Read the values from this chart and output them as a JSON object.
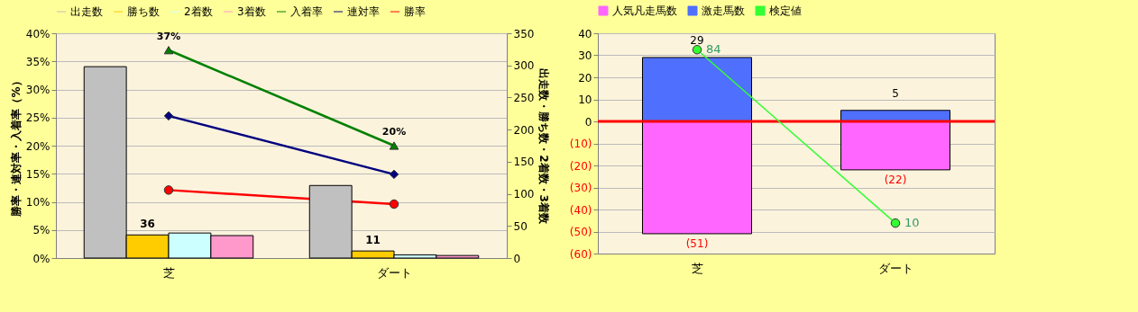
{
  "chart_data": [
    {
      "type": "bar",
      "categories": [
        "芝",
        "ダート"
      ],
      "ylabel": "勝率・連対率・入着率（%）",
      "y2label": "出走数・勝ち数・2着数・3着数",
      "ylim": [
        0,
        40
      ],
      "yticks": [
        {
          "value": 0,
          "label": "0%"
        },
        {
          "value": 5,
          "label": "5%"
        },
        {
          "value": 10,
          "label": "10%"
        },
        {
          "value": 15,
          "label": "15%"
        },
        {
          "value": 20,
          "label": "20%"
        },
        {
          "value": 25,
          "label": "25%"
        },
        {
          "value": 30,
          "label": "30%"
        },
        {
          "value": 35,
          "label": "35%"
        },
        {
          "value": 40,
          "label": "40%"
        }
      ],
      "y2lim": [
        0,
        350
      ],
      "y2ticks": [
        0,
        50,
        100,
        150,
        200,
        250,
        300,
        350
      ],
      "legend": "top",
      "grid": "y",
      "series": [
        {
          "name": "出走数",
          "color": "#c0c0c0",
          "axis": "y2",
          "values": [
            298,
            113
          ]
        },
        {
          "name": "勝ち数",
          "color": "#ffcc00",
          "axis": "y2",
          "values": [
            36,
            11
          ],
          "value_labels": [
            "36",
            "11"
          ]
        },
        {
          "name": "2着数",
          "color": "#ccffff",
          "axis": "y2",
          "values": [
            39,
            5
          ]
        },
        {
          "name": "3着数",
          "color": "#ff99cc",
          "axis": "y2",
          "values": [
            35,
            4
          ]
        },
        {
          "name": "入着率",
          "type": "line",
          "color": "#008000",
          "marker": "triangle",
          "values": [
            37,
            20
          ],
          "value_labels": [
            "37%",
            "20%"
          ]
        },
        {
          "name": "連対率",
          "type": "line",
          "color": "#000080",
          "marker": "diamond",
          "values": [
            25.3,
            14.9
          ]
        },
        {
          "name": "勝率",
          "type": "line",
          "color": "#ff0000",
          "marker": "circle",
          "values": [
            12.1,
            9.6
          ]
        }
      ]
    },
    {
      "type": "bar",
      "stacked": true,
      "categories": [
        "芝",
        "ダート"
      ],
      "ylim": [
        -60,
        40
      ],
      "y2lim": [
        -3,
        91
      ],
      "yticks": [
        {
          "value": -60,
          "label": "(60)"
        },
        {
          "value": -50,
          "label": "(50)"
        },
        {
          "value": -40,
          "label": "(40)"
        },
        {
          "value": -30,
          "label": "(30)"
        },
        {
          "value": -20,
          "label": "(20)"
        },
        {
          "value": -10,
          "label": "(10)"
        },
        0,
        10,
        20,
        30,
        40
      ],
      "legend": "top",
      "grid": "y",
      "ref_lines": [
        {
          "axis": "y",
          "value": 0,
          "color": "#ff0000"
        }
      ],
      "series": [
        {
          "name": "人気凡走馬数",
          "color": "#ff66ff",
          "values": [
            -51,
            -22
          ],
          "value_labels": [
            "(51)",
            "(22)"
          ]
        },
        {
          "name": "激走馬数",
          "color": "#4f6fff",
          "values": [
            29,
            5
          ],
          "value_labels": [
            "29",
            "5"
          ]
        },
        {
          "name": "検定値",
          "type": "line",
          "axis": "y2",
          "color": "#33ff33",
          "marker": "circle",
          "values": [
            84,
            10
          ],
          "data_labels": true
        }
      ]
    }
  ]
}
